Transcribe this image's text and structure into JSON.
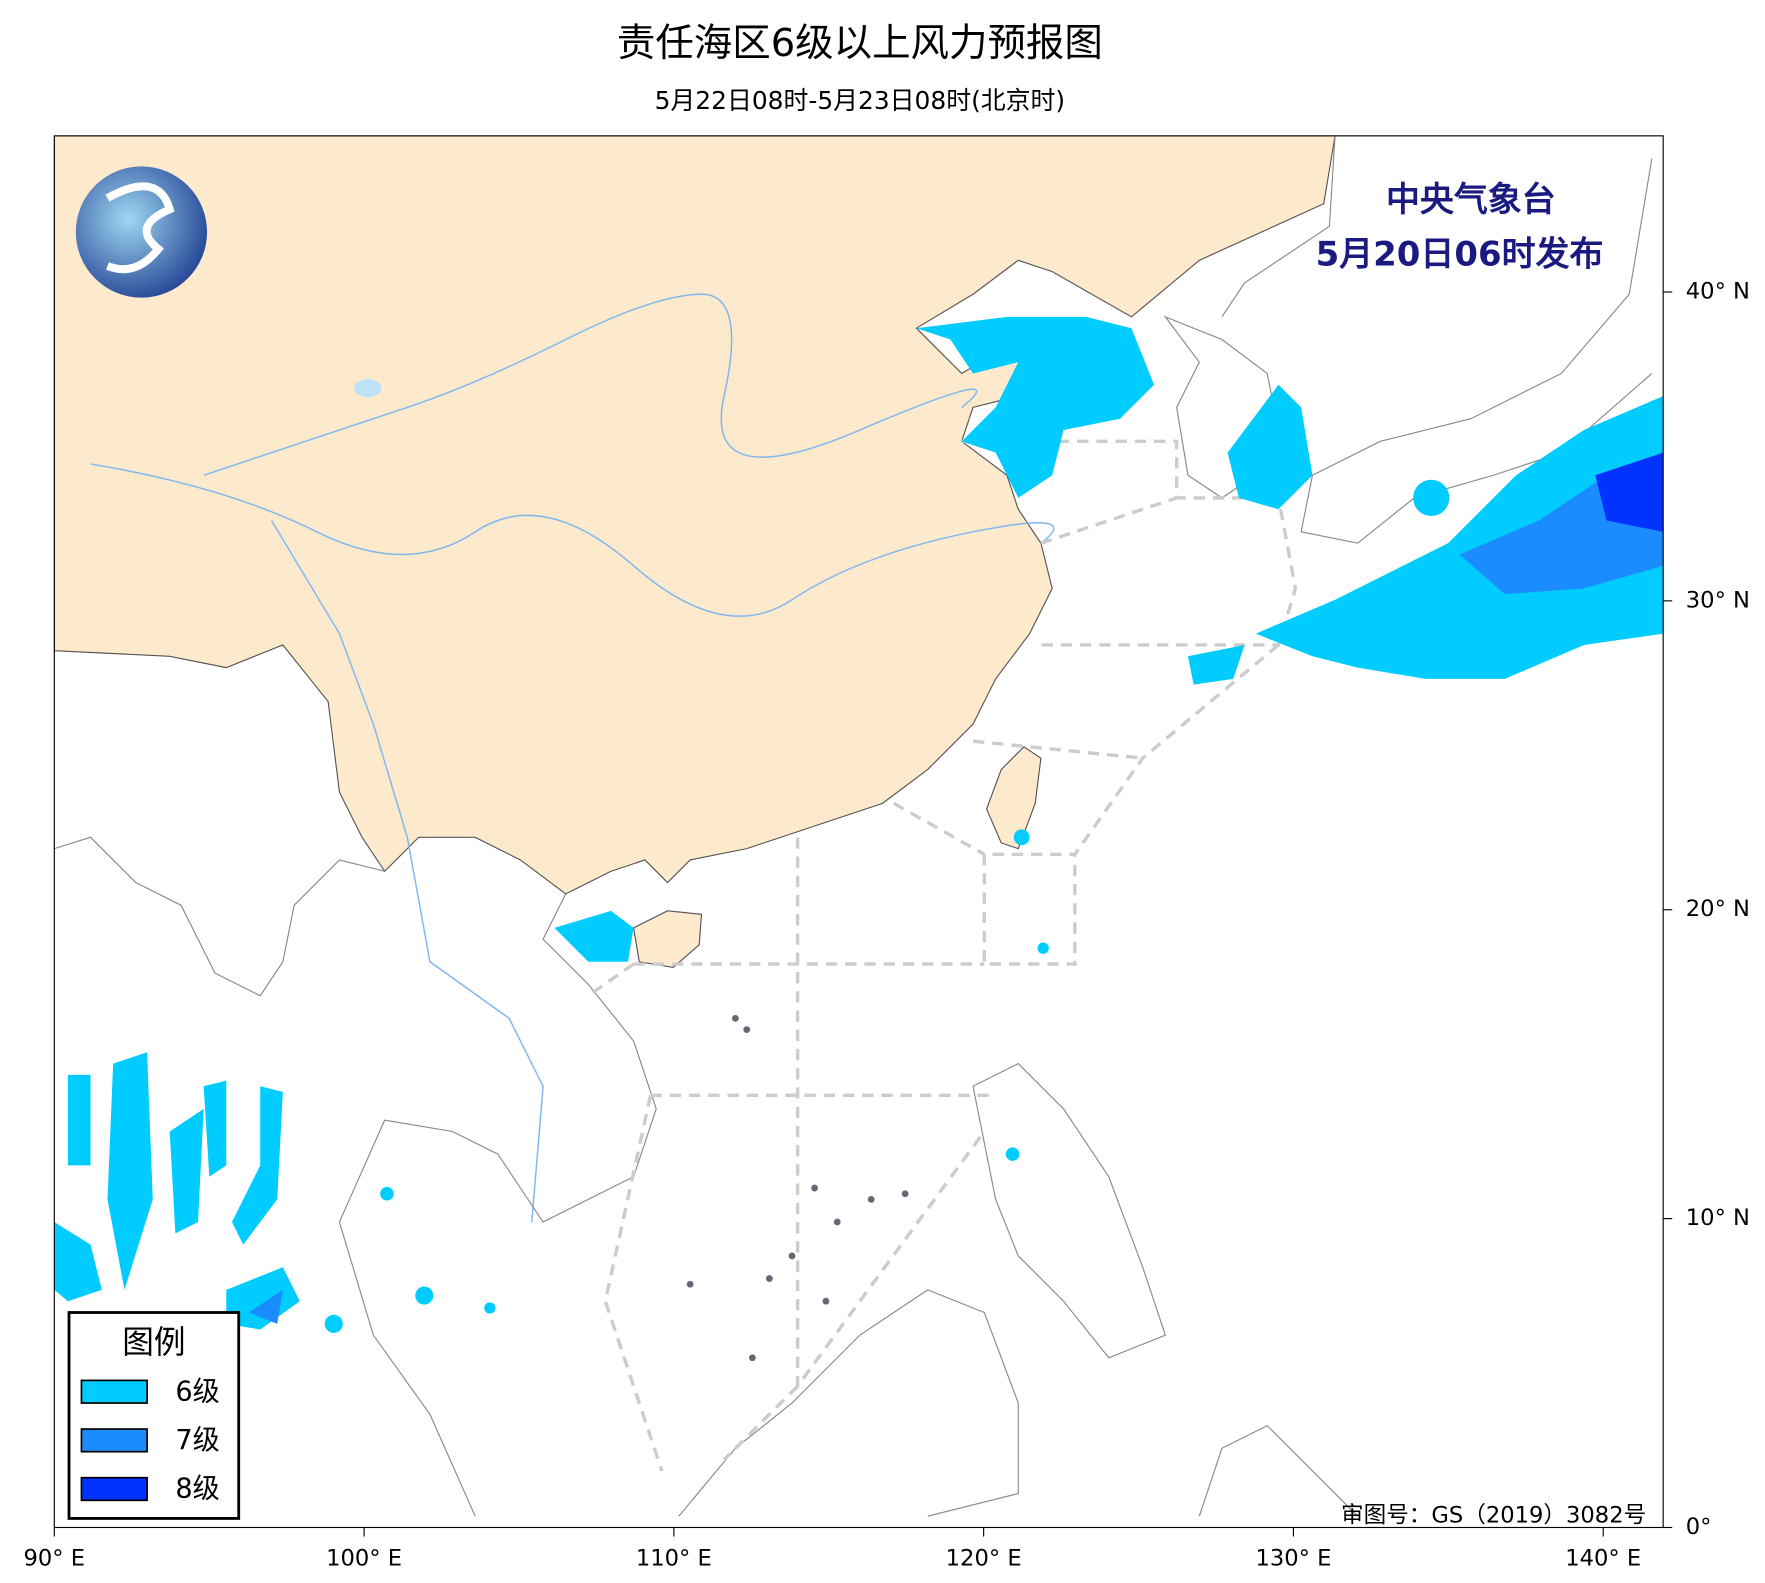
{
  "header": {
    "title": "责任海区6级以上风力预报图",
    "subtitle": "5月22日08时-5月23日08时(北京时)"
  },
  "publisher": {
    "name": "中央气象台",
    "issued": "5月20日06时发布"
  },
  "legend": {
    "title": "图例",
    "items": [
      {
        "label": "6级",
        "color": "#00ccff"
      },
      {
        "label": "7级",
        "color": "#1a8cff"
      },
      {
        "label": "8级",
        "color": "#0033ff"
      }
    ]
  },
  "axes": {
    "lon_labels": [
      "90° E",
      "100° E",
      "110° E",
      "120° E",
      "130° E",
      "140° E"
    ],
    "lat_labels": [
      "40° N",
      "30° N",
      "20° N",
      "10° N",
      "0°"
    ]
  },
  "approval": "审图号：GS（2019）3082号"
}
